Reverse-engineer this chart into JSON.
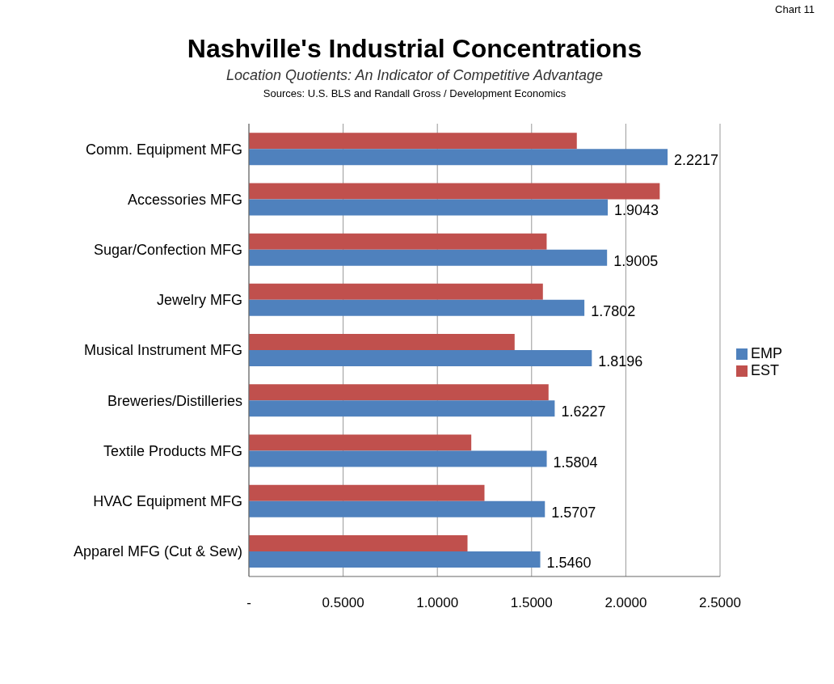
{
  "chart_data": {
    "type": "bar",
    "orientation": "horizontal",
    "title": "Nashville's Industrial Concentrations",
    "subtitle": "Location Quotients: An Indicator of Competitive Advantage",
    "annotations": [
      "Sources: U.S. BLS and Randall Gross / Development Economics",
      "Chart 11"
    ],
    "categories": [
      "Comm. Equipment MFG",
      "Accessories MFG",
      "Sugar/Confection MFG",
      "Jewelry MFG",
      "Musical Instrument MFG",
      "Breweries/Distilleries",
      "Textile Products MFG",
      "HVAC Equipment MFG",
      "Apparel MFG (Cut & Sew)"
    ],
    "series": [
      {
        "name": "EST",
        "color": "#c0504d",
        "values": [
          1.74,
          2.18,
          1.58,
          1.56,
          1.41,
          1.59,
          1.18,
          1.25,
          1.16
        ]
      },
      {
        "name": "EMP",
        "color": "#4f81bd",
        "values": [
          2.2217,
          1.9043,
          1.9005,
          1.7802,
          1.8196,
          1.6227,
          1.5804,
          1.5707,
          1.546
        ],
        "value_labels": [
          "2.2217",
          "1.9043",
          "1.9005",
          "1.7802",
          "1.8196",
          "1.6227",
          "1.5804",
          "1.5707",
          "1.5460"
        ]
      }
    ],
    "xlim": [
      0,
      2.5
    ],
    "xticks": [
      {
        "value": 0,
        "label": "-"
      },
      {
        "value": 0.5,
        "label": "0.5000"
      },
      {
        "value": 1,
        "label": "1.0000"
      },
      {
        "value": 1.5,
        "label": "1.5000"
      },
      {
        "value": 2,
        "label": "2.0000"
      },
      {
        "value": 2.5,
        "label": "2.5000"
      }
    ],
    "grid": "x",
    "legend": "right"
  }
}
